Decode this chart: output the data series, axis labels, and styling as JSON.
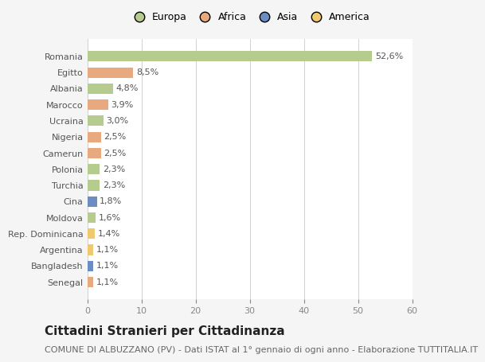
{
  "categories": [
    "Romania",
    "Egitto",
    "Albania",
    "Marocco",
    "Ucraina",
    "Nigeria",
    "Camerun",
    "Polonia",
    "Turchia",
    "Cina",
    "Moldova",
    "Rep. Dominicana",
    "Argentina",
    "Bangladesh",
    "Senegal"
  ],
  "values": [
    52.6,
    8.5,
    4.8,
    3.9,
    3.0,
    2.5,
    2.5,
    2.3,
    2.3,
    1.8,
    1.6,
    1.4,
    1.1,
    1.1,
    1.1
  ],
  "labels": [
    "52,6%",
    "8,5%",
    "4,8%",
    "3,9%",
    "3,0%",
    "2,5%",
    "2,5%",
    "2,3%",
    "2,3%",
    "1,8%",
    "1,6%",
    "1,4%",
    "1,1%",
    "1,1%",
    "1,1%"
  ],
  "continent": [
    "Europa",
    "Africa",
    "Europa",
    "Africa",
    "Europa",
    "Africa",
    "Africa",
    "Europa",
    "Europa",
    "Asia",
    "Europa",
    "America",
    "America",
    "Asia",
    "Africa"
  ],
  "continent_colors": {
    "Europa": "#b5cc8e",
    "Africa": "#e8a97e",
    "Asia": "#6b8dc4",
    "America": "#f0c96e"
  },
  "legend_order": [
    "Europa",
    "Africa",
    "Asia",
    "America"
  ],
  "xlim": [
    0,
    60
  ],
  "xticks": [
    0,
    10,
    20,
    30,
    40,
    50,
    60
  ],
  "title": "Cittadini Stranieri per Cittadinanza",
  "subtitle": "COMUNE DI ALBUZZANO (PV) - Dati ISTAT al 1° gennaio di ogni anno - Elaborazione TUTTITALIA.IT",
  "bg_color": "#f5f5f5",
  "bar_bg_color": "#ffffff",
  "grid_color": "#d0d0d0",
  "title_fontsize": 11,
  "subtitle_fontsize": 8,
  "label_fontsize": 8,
  "tick_fontsize": 8,
  "legend_fontsize": 9
}
